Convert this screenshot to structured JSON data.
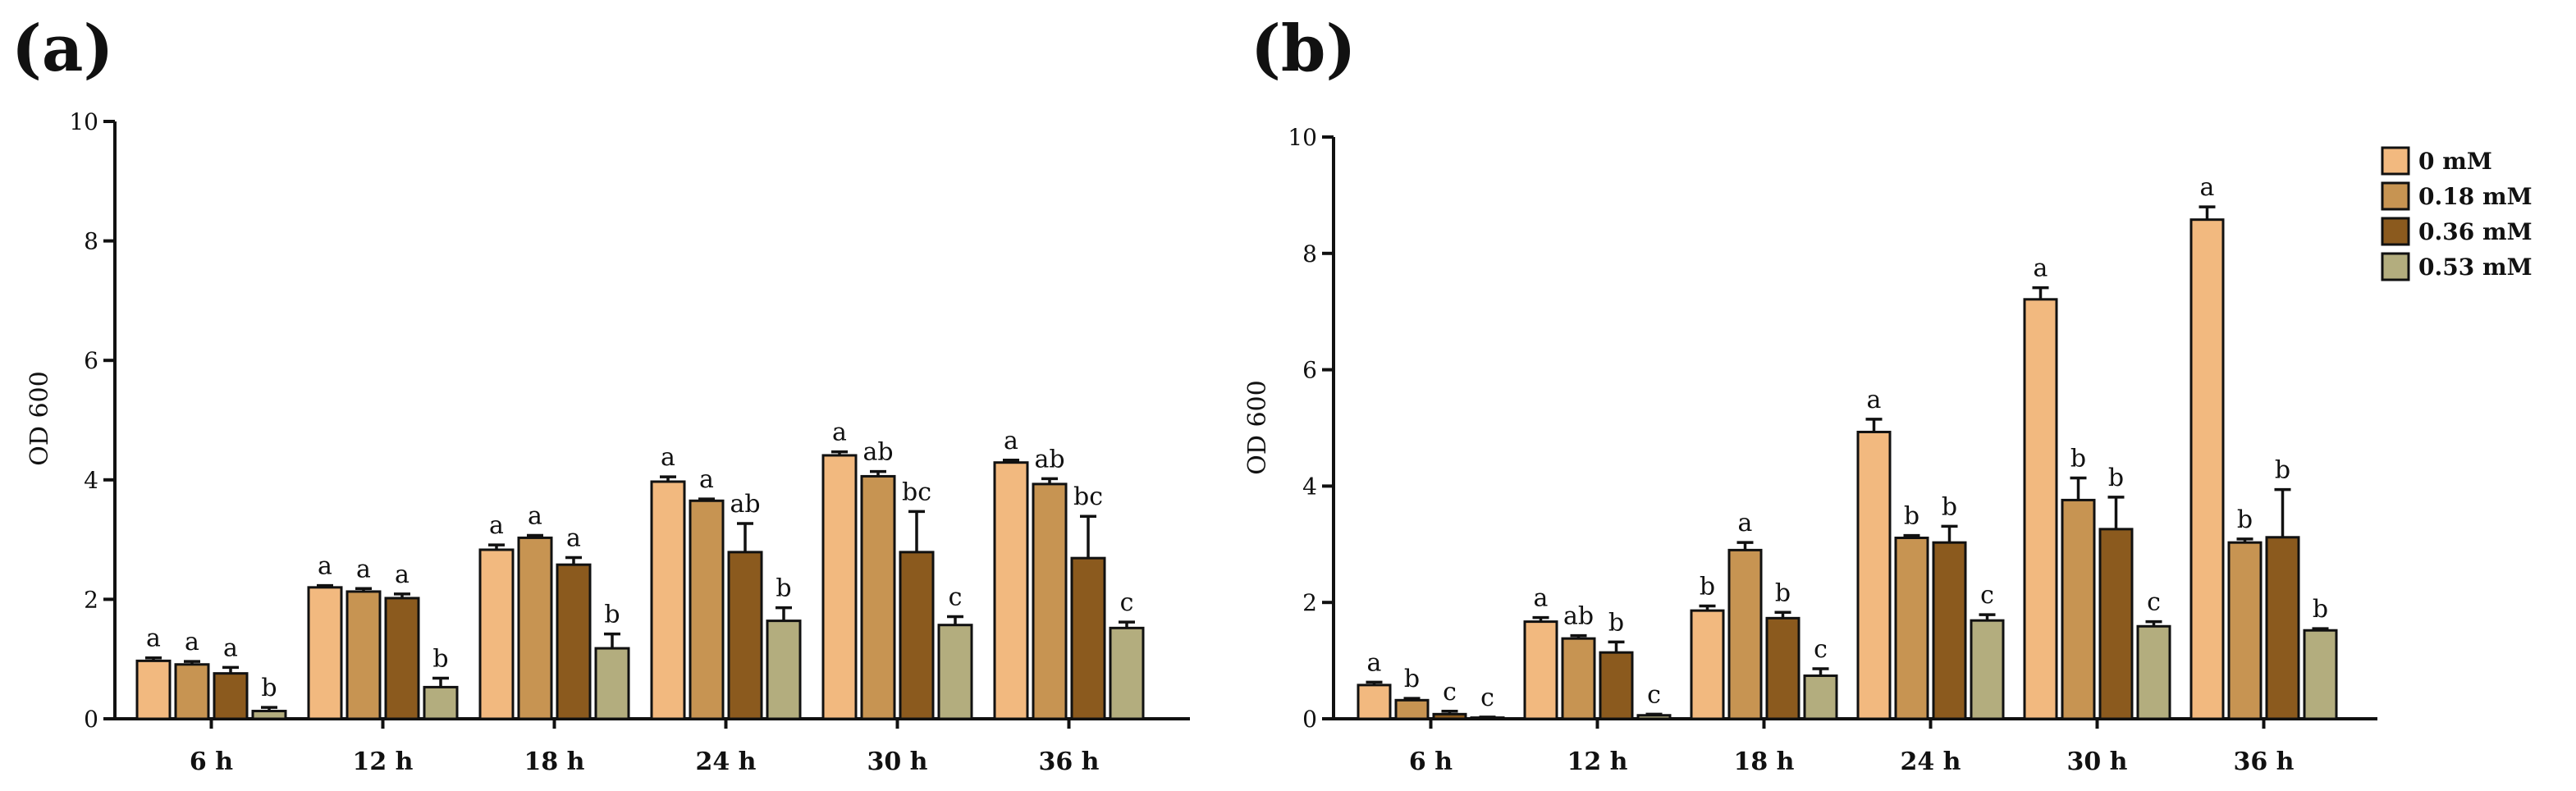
{
  "chart_data": [
    {
      "type": "bar",
      "panel": "(a)",
      "title": "",
      "xlabel": "",
      "ylabel": "OD 600",
      "ylim": [
        0,
        10
      ],
      "yticks": [
        0,
        2,
        4,
        6,
        8,
        10
      ],
      "grid": false,
      "legend": false,
      "categories": [
        "6 h",
        "12 h",
        "18 h",
        "24 h",
        "30 h",
        "36 h"
      ],
      "series": [
        {
          "name": "0 mM",
          "color": "#F2B97F",
          "values": [
            0.97,
            2.2,
            2.83,
            3.97,
            4.41,
            4.29
          ],
          "errors": [
            0.05,
            0.03,
            0.08,
            0.08,
            0.06,
            0.04
          ],
          "labels": [
            "a",
            "a",
            "a",
            "a",
            "a",
            "a"
          ]
        },
        {
          "name": "0.18 mM",
          "color": "#C79452",
          "values": [
            0.91,
            2.13,
            3.03,
            3.65,
            4.06,
            3.93
          ],
          "errors": [
            0.05,
            0.05,
            0.04,
            0.03,
            0.08,
            0.09
          ],
          "labels": [
            "a",
            "a",
            "a",
            "a",
            "ab",
            "ab"
          ]
        },
        {
          "name": "0.36 mM",
          "color": "#8B5A1E",
          "values": [
            0.76,
            2.02,
            2.58,
            2.79,
            2.79,
            2.69
          ],
          "errors": [
            0.1,
            0.07,
            0.12,
            0.48,
            0.68,
            0.7
          ],
          "labels": [
            "a",
            "a",
            "a",
            "ab",
            "bc",
            "bc"
          ]
        },
        {
          "name": "0.53 mM",
          "color": "#B3AD7E",
          "values": [
            0.13,
            0.53,
            1.18,
            1.64,
            1.57,
            1.52
          ],
          "errors": [
            0.06,
            0.15,
            0.24,
            0.22,
            0.14,
            0.1
          ],
          "labels": [
            "b",
            "b",
            "b",
            "b",
            "c",
            "c"
          ]
        }
      ]
    },
    {
      "type": "bar",
      "panel": "(b)",
      "title": "",
      "xlabel": "",
      "ylabel": "OD 600",
      "ylim": [
        0,
        10
      ],
      "yticks": [
        0,
        2,
        4,
        6,
        8,
        10
      ],
      "grid": false,
      "legend": "top-right",
      "categories": [
        "6 h",
        "12 h",
        "18 h",
        "24 h",
        "30 h",
        "36 h"
      ],
      "series": [
        {
          "name": "0 mM",
          "color": "#F2B97F",
          "values": [
            0.58,
            1.67,
            1.86,
            4.93,
            7.21,
            8.58
          ],
          "errors": [
            0.05,
            0.07,
            0.08,
            0.22,
            0.2,
            0.22
          ],
          "labels": [
            "a",
            "a",
            "b",
            "a",
            "a",
            "a"
          ]
        },
        {
          "name": "0.18 mM",
          "color": "#C79452",
          "values": [
            0.32,
            1.38,
            2.9,
            3.11,
            3.76,
            3.03
          ],
          "errors": [
            0.03,
            0.05,
            0.13,
            0.04,
            0.38,
            0.06
          ],
          "labels": [
            "b",
            "ab",
            "a",
            "b",
            "b",
            "b"
          ]
        },
        {
          "name": "0.36 mM",
          "color": "#8B5A1E",
          "values": [
            0.08,
            1.14,
            1.73,
            3.03,
            3.26,
            3.12
          ],
          "errors": [
            0.05,
            0.18,
            0.1,
            0.28,
            0.55,
            0.82
          ],
          "labels": [
            "c",
            "b",
            "b",
            "b",
            "b",
            "b"
          ]
        },
        {
          "name": "0.53 mM",
          "color": "#B3AD7E",
          "values": [
            0.02,
            0.06,
            0.74,
            1.69,
            1.59,
            1.52
          ],
          "errors": [
            0.01,
            0.02,
            0.12,
            0.1,
            0.08,
            0.03
          ],
          "labels": [
            "c",
            "c",
            "c",
            "c",
            "c",
            "b"
          ]
        }
      ]
    }
  ]
}
